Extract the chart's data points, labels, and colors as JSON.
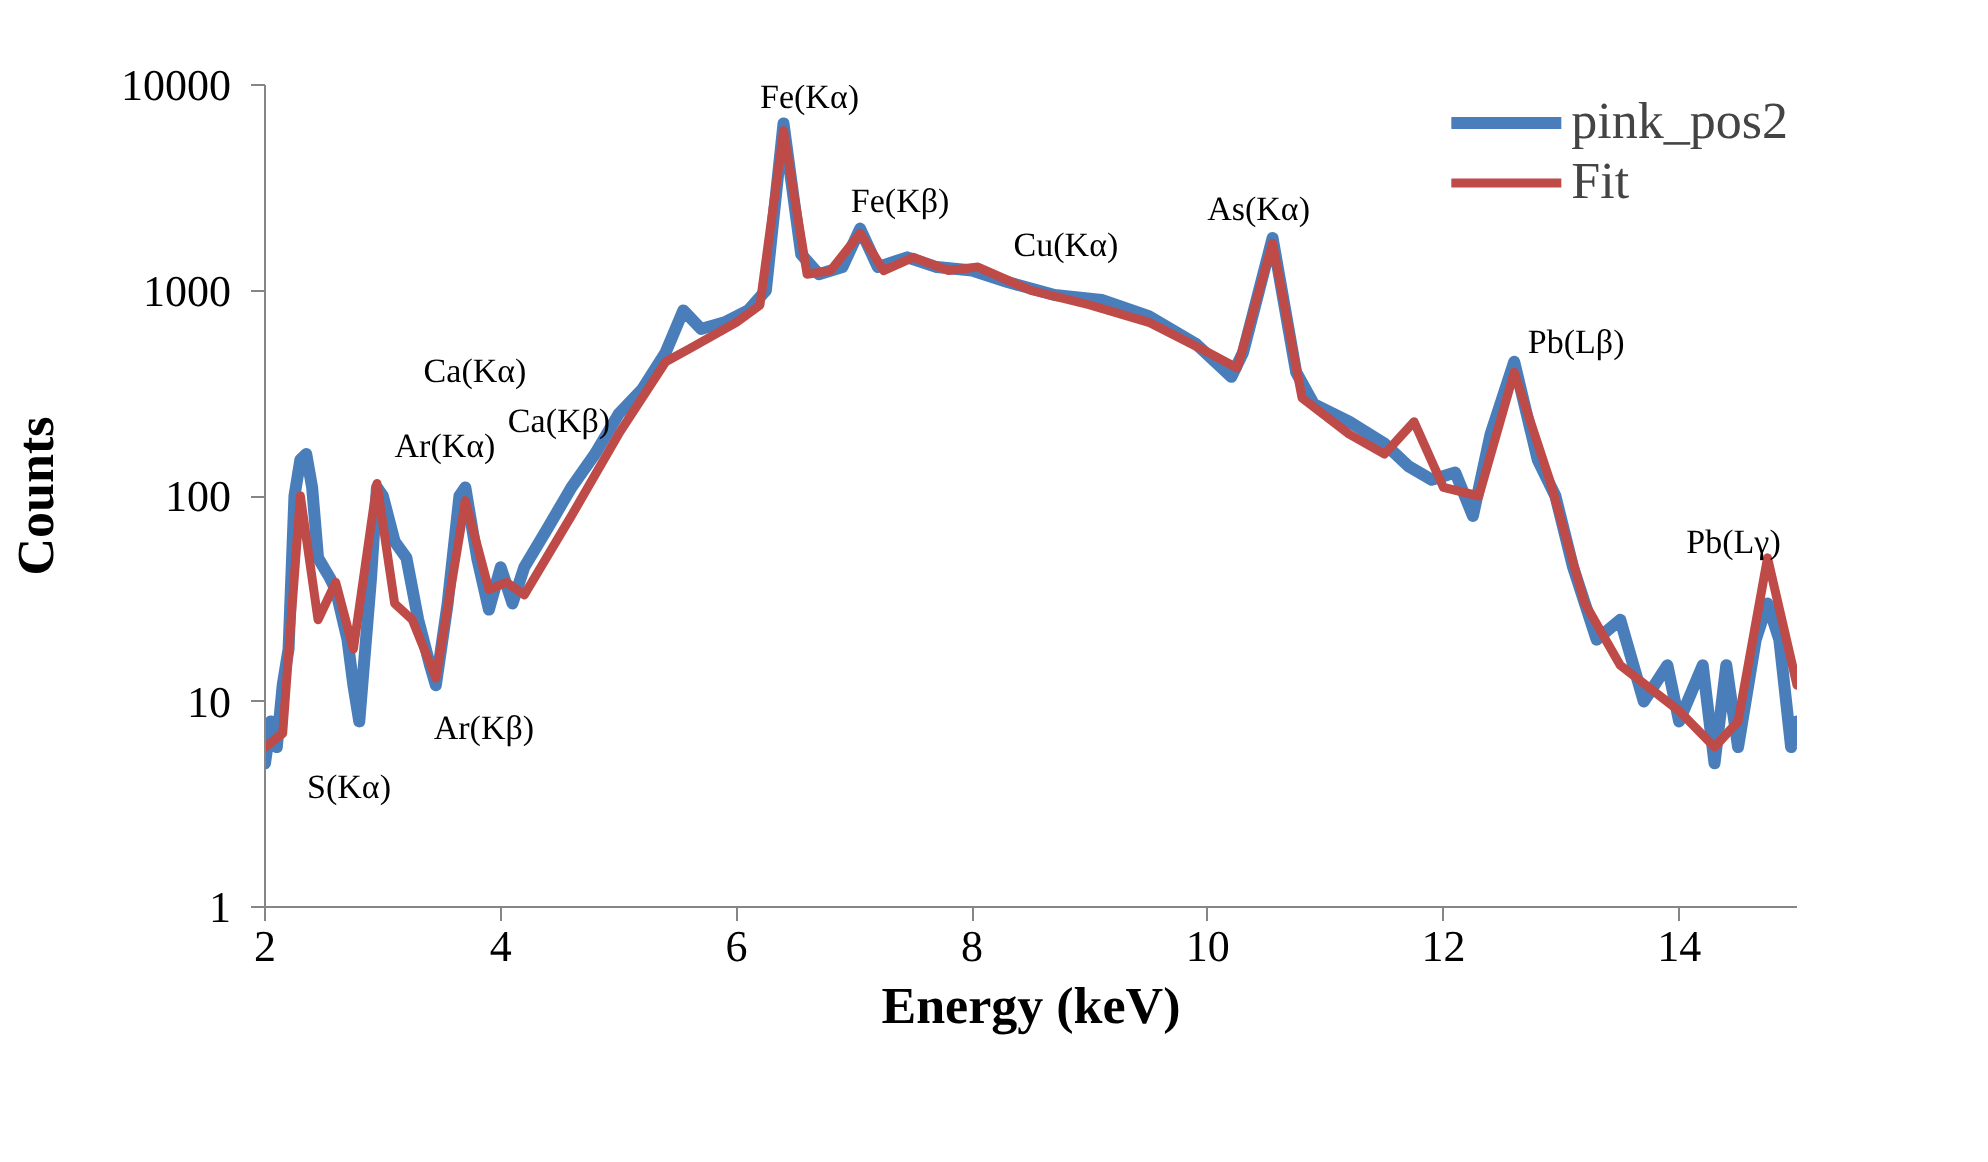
{
  "chart_data": {
    "type": "line",
    "xlabel": "Energy (keV)",
    "ylabel": "Counts",
    "xlim": [
      2,
      15
    ],
    "xticks": [
      2,
      4,
      6,
      8,
      10,
      12,
      14
    ],
    "ylim": [
      1,
      10000
    ],
    "yticks": [
      1,
      10,
      100,
      1000,
      10000
    ],
    "log": "y",
    "grid": false,
    "legend": "top right",
    "marker": "none",
    "line_style": "solid",
    "series": [
      {
        "name": "pink_pos2",
        "color": "#4a7ebb",
        "x": [
          2.0,
          2.05,
          2.1,
          2.15,
          2.2,
          2.25,
          2.3,
          2.35,
          2.4,
          2.45,
          2.55,
          2.6,
          2.7,
          2.75,
          2.8,
          2.9,
          2.95,
          3.0,
          3.1,
          3.2,
          3.3,
          3.4,
          3.45,
          3.55,
          3.65,
          3.7,
          3.8,
          3.9,
          4.0,
          4.1,
          4.2,
          4.4,
          4.6,
          4.8,
          5.0,
          5.2,
          5.4,
          5.55,
          5.7,
          5.9,
          6.1,
          6.25,
          6.4,
          6.55,
          6.7,
          6.9,
          7.05,
          7.2,
          7.45,
          7.7,
          8.0,
          8.3,
          8.7,
          9.1,
          9.5,
          9.9,
          10.2,
          10.3,
          10.55,
          10.75,
          10.9,
          11.2,
          11.5,
          11.7,
          11.9,
          12.1,
          12.25,
          12.4,
          12.6,
          12.8,
          12.95,
          13.1,
          13.3,
          13.5,
          13.7,
          13.9,
          14.0,
          14.2,
          14.3,
          14.4,
          14.5,
          14.65,
          14.75,
          14.85,
          14.95,
          15.0
        ],
        "values": [
          5,
          8,
          6,
          12,
          18,
          100,
          150,
          160,
          110,
          50,
          40,
          35,
          20,
          12,
          8,
          40,
          110,
          100,
          60,
          50,
          25,
          15,
          12,
          30,
          100,
          110,
          50,
          28,
          45,
          30,
          45,
          70,
          110,
          160,
          250,
          330,
          500,
          800,
          650,
          700,
          800,
          1000,
          6500,
          1500,
          1200,
          1300,
          2000,
          1300,
          1450,
          1300,
          1250,
          1100,
          950,
          900,
          750,
          550,
          380,
          500,
          1800,
          400,
          280,
          230,
          180,
          140,
          120,
          130,
          80,
          200,
          450,
          150,
          100,
          45,
          20,
          25,
          10,
          15,
          8,
          15,
          5,
          15,
          6,
          20,
          30,
          20,
          6,
          8
        ]
      },
      {
        "name": "Fit",
        "color": "#be4b48",
        "x": [
          2.0,
          2.15,
          2.3,
          2.45,
          2.6,
          2.75,
          2.95,
          3.1,
          3.25,
          3.45,
          3.7,
          3.9,
          4.05,
          4.2,
          4.6,
          5.0,
          5.4,
          5.6,
          6.0,
          6.2,
          6.4,
          6.6,
          6.8,
          7.05,
          7.25,
          7.5,
          7.8,
          8.05,
          8.5,
          9.0,
          9.5,
          10.0,
          10.25,
          10.55,
          10.8,
          11.2,
          11.5,
          11.75,
          12.0,
          12.3,
          12.6,
          12.9,
          13.2,
          13.5,
          14.0,
          14.3,
          14.5,
          14.75,
          15.0
        ],
        "values": [
          6,
          7,
          100,
          25,
          38,
          18,
          115,
          30,
          25,
          13,
          95,
          35,
          38,
          33,
          80,
          200,
          450,
          520,
          700,
          850,
          6000,
          1200,
          1250,
          1900,
          1250,
          1450,
          1250,
          1300,
          1000,
          850,
          700,
          500,
          420,
          1700,
          300,
          200,
          160,
          230,
          110,
          100,
          400,
          120,
          30,
          15,
          9,
          6,
          8,
          50,
          12
        ]
      }
    ],
    "annotations": [
      "S(Kα)",
      {
        "text": "Ar(Kα)",
        "x": 2.95,
        "y": 115
      },
      {
        "text": "Ar(Kβ)",
        "x": 3.45,
        "y": 13
      },
      "Ca(Kα)",
      "Ca(Kβ)",
      {
        "text": "Fe(Kα)",
        "x": 6.4,
        "y": 6000
      },
      {
        "text": "Fe(Kβ)",
        "x": 7.05,
        "y": 1900
      },
      {
        "text": "Cu(Kα)",
        "x": 8.05,
        "y": 1300
      },
      {
        "text": "As(Kα)",
        "x": 10.55,
        "y": 1700
      },
      {
        "text": "Pb(Lβ)",
        "x": 12.6,
        "y": 400
      },
      {
        "text": "Pb(Lγ)",
        "x": 14.75,
        "y": 50
      }
    ]
  }
}
